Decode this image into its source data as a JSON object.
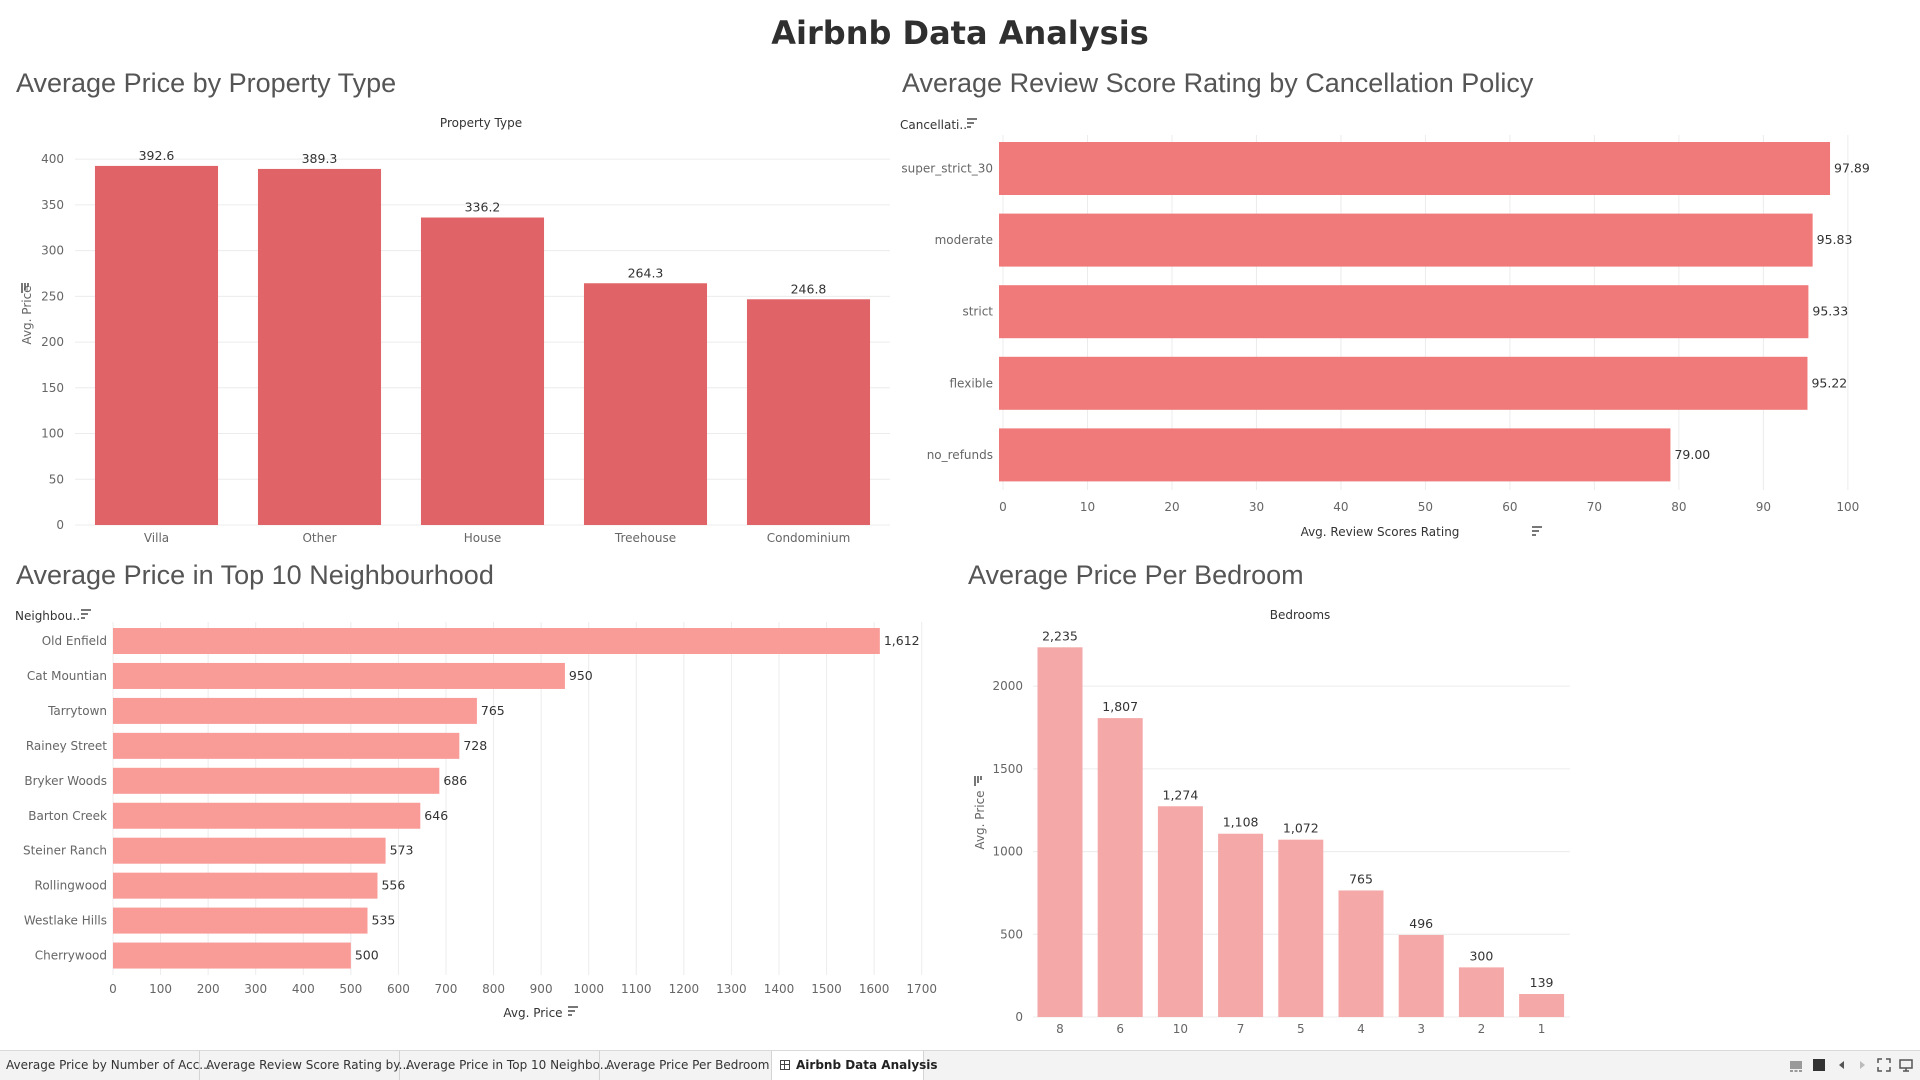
{
  "dashboard": {
    "title": "Airbnb Data Analysis"
  },
  "charts": {
    "property": {
      "title": "Average Price by Property Type",
      "header": "Property Type",
      "ylabel": "Avg. Price",
      "ticks": [
        "0",
        "50",
        "100",
        "150",
        "200",
        "250",
        "300",
        "350",
        "400"
      ]
    },
    "cancellation": {
      "title": "Average Review Score Rating by Cancellation Policy",
      "header": "Cancellati..",
      "xlabel": "Avg. Review Scores Rating",
      "ticks": [
        "0",
        "10",
        "20",
        "30",
        "40",
        "50",
        "60",
        "70",
        "80",
        "90",
        "100"
      ]
    },
    "neighbourhood": {
      "title": "Average Price in Top 10 Neighbourhood",
      "header": "Neighbou..",
      "xlabel": "Avg. Price",
      "ticks": [
        "0",
        "100",
        "200",
        "300",
        "400",
        "500",
        "600",
        "700",
        "800",
        "900",
        "1000",
        "1100",
        "1200",
        "1300",
        "1400",
        "1500",
        "1600",
        "1700"
      ]
    },
    "bedroom": {
      "title": "Average Price Per Bedroom",
      "header": "Bedrooms",
      "ylabel": "Avg. Price",
      "ticks": [
        "0",
        "500",
        "1000",
        "1500",
        "2000"
      ]
    }
  },
  "chart_data": [
    {
      "type": "bar",
      "title": "Average Price by Property Type",
      "xlabel": "Property Type",
      "ylabel": "Avg. Price",
      "categories": [
        "Villa",
        "Other",
        "House",
        "Treehouse",
        "Condominium"
      ],
      "values": [
        392.6,
        389.3,
        336.2,
        264.3,
        246.8
      ],
      "labels": [
        "392.6",
        "389.3",
        "336.2",
        "264.3",
        "246.8"
      ],
      "ylim": [
        0,
        410
      ],
      "color": "#e06467"
    },
    {
      "type": "bar",
      "orientation": "horizontal",
      "title": "Average Review Score Rating by Cancellation Policy",
      "ylabel": "Cancellati..",
      "xlabel": "Avg. Review Scores Rating",
      "categories": [
        "super_strict_30",
        "moderate",
        "strict",
        "flexible",
        "no_refunds"
      ],
      "values": [
        97.89,
        95.83,
        95.33,
        95.22,
        79.0
      ],
      "labels": [
        "97.89",
        "95.83",
        "95.33",
        "95.22",
        "79.00"
      ],
      "xlim": [
        0,
        107
      ],
      "color": "#f07a7a"
    },
    {
      "type": "bar",
      "orientation": "horizontal",
      "title": "Average Price in Top 10 Neighbourhood",
      "ylabel": "Neighbou..",
      "xlabel": "Avg. Price",
      "categories": [
        "Old Enfield",
        "Cat Mountian",
        "Tarrytown",
        "Rainey Street",
        "Bryker Woods",
        "Barton Creek",
        "Steiner Ranch",
        "Rollingwood",
        "Westlake Hills",
        "Cherrywood"
      ],
      "values": [
        1612,
        950,
        765,
        728,
        686,
        646,
        573,
        556,
        535,
        500
      ],
      "labels": [
        "1,612",
        "950",
        "765",
        "728",
        "686",
        "646",
        "573",
        "556",
        "535",
        "500"
      ],
      "xlim": [
        0,
        1770
      ],
      "color": "#f99b97"
    },
    {
      "type": "bar",
      "title": "Average Price Per Bedroom",
      "xlabel": "Bedrooms",
      "ylabel": "Avg. Price",
      "categories": [
        "8",
        "6",
        "10",
        "7",
        "5",
        "4",
        "3",
        "2",
        "1"
      ],
      "values": [
        2235,
        1807,
        1274,
        1108,
        1072,
        765,
        496,
        300,
        139
      ],
      "labels": [
        "2,235",
        "1,807",
        "1,274",
        "1,108",
        "1,072",
        "765",
        "496",
        "300",
        "139"
      ],
      "ylim": [
        0,
        2400
      ],
      "color": "#f4a9a8"
    }
  ],
  "tabs": [
    {
      "label": "Average Price by Number of Acc..."
    },
    {
      "label": "Average Review Score Rating by..."
    },
    {
      "label": "Average Price in Top 10 Neighbo..."
    },
    {
      "label": "Average Price Per Bedroom"
    },
    {
      "label": "Airbnb Data Analysis",
      "active": true
    }
  ],
  "controls": [
    "filmstrip-view-icon",
    "list-view-icon",
    "prev-sheet-icon",
    "next-sheet-icon",
    "fullscreen-icon",
    "presentation-icon"
  ]
}
